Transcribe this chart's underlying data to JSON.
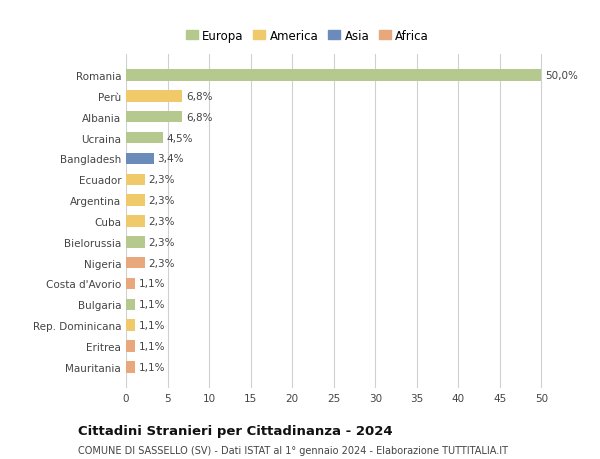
{
  "countries": [
    "Romania",
    "Perù",
    "Albania",
    "Ucraina",
    "Bangladesh",
    "Ecuador",
    "Argentina",
    "Cuba",
    "Bielorussia",
    "Nigeria",
    "Costa d'Avorio",
    "Bulgaria",
    "Rep. Dominicana",
    "Eritrea",
    "Mauritania"
  ],
  "values": [
    50.0,
    6.8,
    6.8,
    4.5,
    3.4,
    2.3,
    2.3,
    2.3,
    2.3,
    2.3,
    1.1,
    1.1,
    1.1,
    1.1,
    1.1
  ],
  "labels": [
    "50,0%",
    "6,8%",
    "6,8%",
    "4,5%",
    "3,4%",
    "2,3%",
    "2,3%",
    "2,3%",
    "2,3%",
    "2,3%",
    "1,1%",
    "1,1%",
    "1,1%",
    "1,1%",
    "1,1%"
  ],
  "colors": [
    "#b5c98e",
    "#f0c96a",
    "#b5c98e",
    "#b5c98e",
    "#6b8cba",
    "#f0c96a",
    "#f0c96a",
    "#f0c96a",
    "#b5c98e",
    "#e8a87c",
    "#e8a87c",
    "#b5c98e",
    "#f0c96a",
    "#e8a87c",
    "#e8a87c"
  ],
  "legend_labels": [
    "Europa",
    "America",
    "Asia",
    "Africa"
  ],
  "legend_colors": [
    "#b5c98e",
    "#f0c96a",
    "#6b8cba",
    "#e8a87c"
  ],
  "xlim": [
    0,
    52
  ],
  "xticks": [
    0,
    5,
    10,
    15,
    20,
    25,
    30,
    35,
    40,
    45,
    50
  ],
  "title": "Cittadini Stranieri per Cittadinanza - 2024",
  "subtitle": "COMUNE DI SASSELLO (SV) - Dati ISTAT al 1° gennaio 2024 - Elaborazione TUTTITALIA.IT",
  "bg_color": "#ffffff",
  "grid_color": "#d0d0d0",
  "bar_height": 0.55,
  "label_fontsize": 7.5,
  "ytick_fontsize": 7.5,
  "xtick_fontsize": 7.5,
  "legend_fontsize": 8.5,
  "title_fontsize": 9.5,
  "subtitle_fontsize": 7.0
}
